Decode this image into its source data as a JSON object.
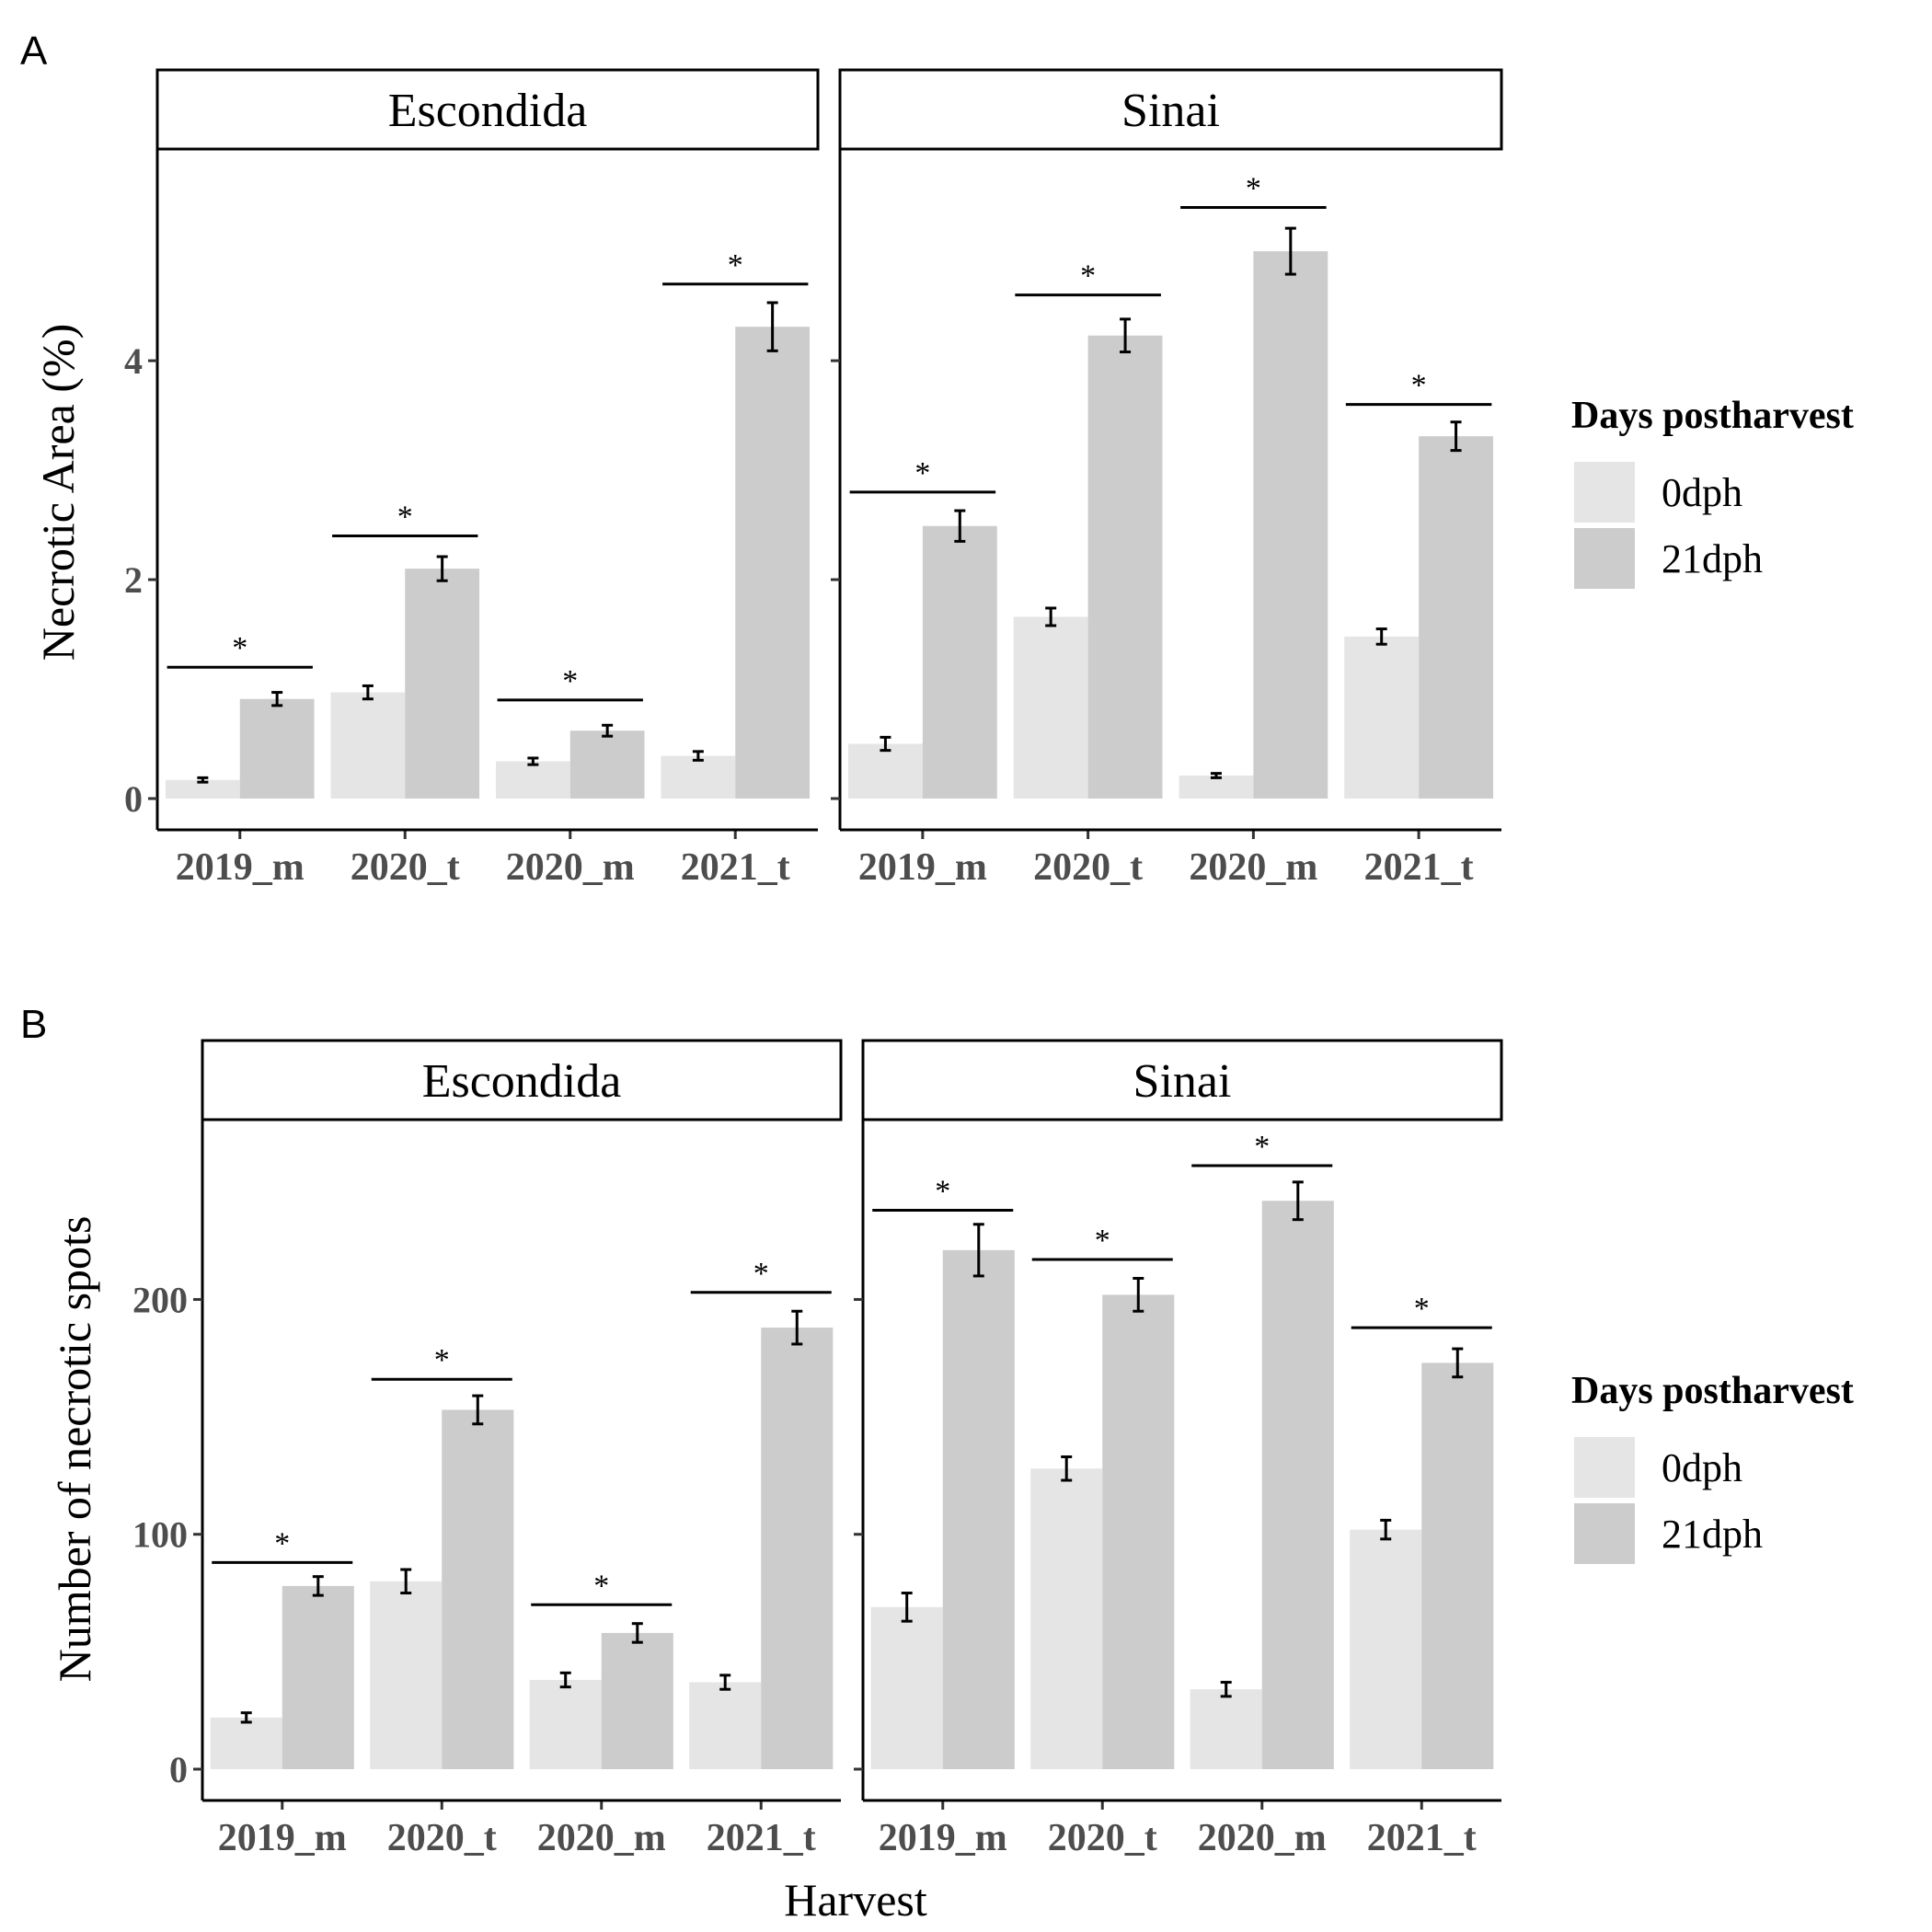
{
  "figure": {
    "background": "#ffffff"
  },
  "legend": {
    "title": "Days postharvest",
    "items": [
      {
        "label": "0dph",
        "color": "#e5e5e5"
      },
      {
        "label": "21dph",
        "color": "#cccccc"
      }
    ]
  },
  "chart_data": [
    {
      "panel_label": "A",
      "type": "bar",
      "ylabel": "Necrotic Area (%)",
      "xlabel": "",
      "ylim": [
        0,
        5.9
      ],
      "yticks": [
        0,
        2,
        4
      ],
      "facets": [
        {
          "name": "Escondida",
          "categories": [
            "2019_m",
            "2020_t",
            "2020_m",
            "2021_t"
          ],
          "series": [
            {
              "name": "0dph",
              "values": [
                0.17,
                0.97,
                0.34,
                0.39
              ],
              "errors": [
                0.02,
                0.06,
                0.03,
                0.04
              ]
            },
            {
              "name": "21dph",
              "values": [
                0.91,
                2.1,
                0.62,
                4.31
              ],
              "errors": [
                0.06,
                0.11,
                0.05,
                0.22
              ]
            }
          ],
          "significance": [
            {
              "category": "2019_m",
              "label": "*",
              "y": 1.2
            },
            {
              "category": "2020_t",
              "label": "*",
              "y": 2.4
            },
            {
              "category": "2020_m",
              "label": "*",
              "y": 0.9
            },
            {
              "category": "2021_t",
              "label": "*",
              "y": 4.7
            }
          ]
        },
        {
          "name": "Sinai",
          "categories": [
            "2019_m",
            "2020_t",
            "2020_m",
            "2021_t"
          ],
          "series": [
            {
              "name": "0dph",
              "values": [
                0.5,
                1.66,
                0.21,
                1.48
              ],
              "errors": [
                0.06,
                0.08,
                0.02,
                0.07
              ]
            },
            {
              "name": "21dph",
              "values": [
                2.49,
                4.23,
                5.0,
                3.31
              ],
              "errors": [
                0.14,
                0.15,
                0.21,
                0.13
              ]
            }
          ],
          "significance": [
            {
              "category": "2019_m",
              "label": "*",
              "y": 2.8
            },
            {
              "category": "2020_t",
              "label": "*",
              "y": 4.6
            },
            {
              "category": "2020_m",
              "label": "*",
              "y": 5.4
            },
            {
              "category": "2021_t",
              "label": "*",
              "y": 3.6
            }
          ]
        }
      ]
    },
    {
      "panel_label": "B",
      "type": "bar",
      "ylabel": "Number of necrotic spots",
      "xlabel": "Harvest",
      "ylim": [
        0,
        275
      ],
      "yticks": [
        0,
        100,
        200
      ],
      "facets": [
        {
          "name": "Escondida",
          "categories": [
            "2019_m",
            "2020_t",
            "2020_m",
            "2021_t"
          ],
          "series": [
            {
              "name": "0dph",
              "values": [
                22,
                80,
                38,
                37
              ],
              "errors": [
                2,
                5,
                3,
                3
              ]
            },
            {
              "name": "21dph",
              "values": [
                78,
                153,
                58,
                188
              ],
              "errors": [
                4,
                6,
                4,
                7
              ]
            }
          ],
          "significance": [
            {
              "category": "2019_m",
              "label": "*",
              "y": 88
            },
            {
              "category": "2020_t",
              "label": "*",
              "y": 166
            },
            {
              "category": "2020_m",
              "label": "*",
              "y": 70
            },
            {
              "category": "2021_t",
              "label": "*",
              "y": 203
            }
          ]
        },
        {
          "name": "Sinai",
          "categories": [
            "2019_m",
            "2020_t",
            "2020_m",
            "2021_t"
          ],
          "series": [
            {
              "name": "0dph",
              "values": [
                69,
                128,
                34,
                102
              ],
              "errors": [
                6,
                5,
                3,
                4
              ]
            },
            {
              "name": "21dph",
              "values": [
                221,
                202,
                242,
                173
              ],
              "errors": [
                11,
                7,
                8,
                6
              ]
            }
          ],
          "significance": [
            {
              "category": "2019_m",
              "label": "*",
              "y": 238
            },
            {
              "category": "2020_t",
              "label": "*",
              "y": 217
            },
            {
              "category": "2020_m",
              "label": "*",
              "y": 257
            },
            {
              "category": "2021_t",
              "label": "*",
              "y": 188
            }
          ]
        }
      ]
    }
  ]
}
